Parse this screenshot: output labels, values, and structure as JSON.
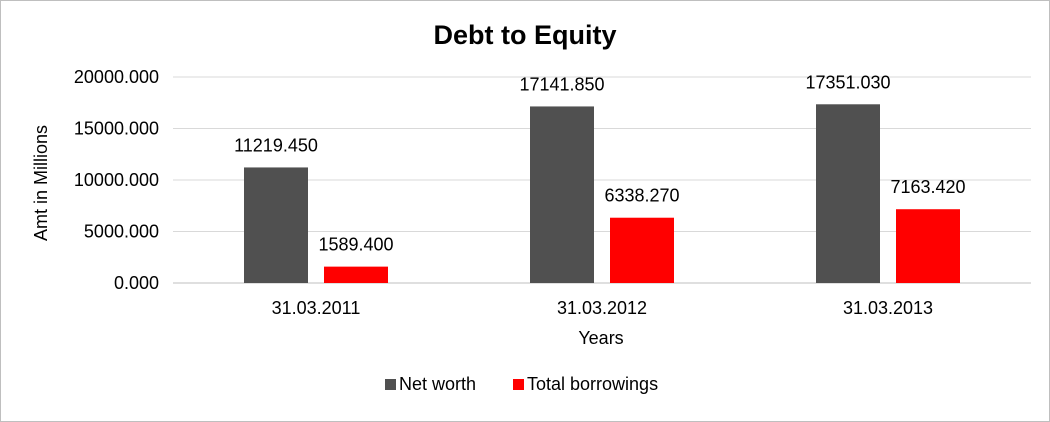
{
  "chart_data": {
    "type": "bar",
    "title": "Debt to Equity",
    "xlabel": "Years",
    "ylabel": "Amt in Millions",
    "categories": [
      "31.03.2011",
      "31.03.2012",
      "31.03.2013"
    ],
    "series": [
      {
        "name": "Net worth",
        "color": "#505050",
        "values": [
          11219.45,
          17141.85,
          17351.03
        ],
        "labels": [
          "11219.450",
          "17141.850",
          "17351.030"
        ]
      },
      {
        "name": "Total borrowings",
        "color": "#ff0000",
        "values": [
          1589.4,
          6338.27,
          7163.42
        ],
        "labels": [
          "1589.400",
          "6338.270",
          "7163.420"
        ]
      }
    ],
    "ylim": [
      0,
      20000
    ],
    "yticks": [
      0,
      5000,
      10000,
      15000,
      20000
    ],
    "ytick_labels": [
      "0.000",
      "5000.000",
      "10000.000",
      "15000.000",
      "20000.000"
    ],
    "grid": true,
    "legend_position": "bottom"
  }
}
